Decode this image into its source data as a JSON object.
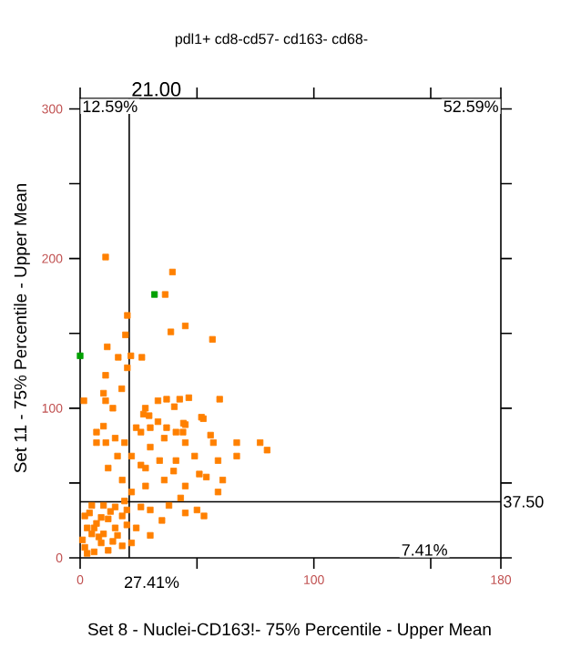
{
  "chart_data": {
    "type": "scatter",
    "title": "pdl1+ cd8-cd57- cd163- cd68-",
    "xlabel": "Set 8 - Nuclei-CD163!- 75% Percentile - Upper Mean",
    "ylabel": "Set 11 - 75% Percentile - Upper Mean",
    "xlim": [
      0,
      180
    ],
    "ylim": [
      0,
      307
    ],
    "xticks": [
      0,
      {
        "value": 50,
        "label": null
      },
      100,
      {
        "value": 150,
        "label": null
      },
      180
    ],
    "yticks": [
      0,
      {
        "value": 50,
        "label": null
      },
      100,
      {
        "value": 150,
        "label": null
      },
      200,
      {
        "value": 250,
        "label": null
      },
      300
    ],
    "marker": "square",
    "grid": false,
    "ref_lines": [
      {
        "axis": "x",
        "value": 21,
        "label": "21.00",
        "color": "#000000"
      },
      {
        "axis": "y",
        "value": 37.5,
        "label": "37.50",
        "color": "#000000"
      }
    ],
    "annotations": [
      "12.59%",
      "52.59%",
      "27.41%",
      "7.41%"
    ],
    "series": [
      {
        "color": "#ff8000",
        "x": [
          10.9,
          39.5,
          36.4,
          20.2,
          19.4,
          38.8,
          45,
          56.6,
          11.6,
          16.3,
          21.7,
          26.4,
          20.2,
          10.9,
          17.8,
          1.6,
          10,
          10.9,
          14,
          33.3,
          37,
          42.6,
          46.5,
          59.7,
          27.9,
          27.1,
          29.5,
          33.3,
          40.3,
          44.2,
          51.9,
          52.7,
          10,
          7,
          24,
          37,
          44,
          55.8,
          11,
          7,
          15,
          16,
          12,
          18,
          26,
          30,
          36,
          41,
          45,
          41,
          49,
          57,
          59,
          67,
          67,
          77,
          80,
          61,
          59,
          54,
          45,
          36,
          28,
          22,
          28,
          34,
          50,
          53,
          43,
          38,
          30,
          26,
          20,
          15,
          10,
          5,
          2,
          7,
          12,
          18,
          5,
          10,
          2,
          6,
          15,
          3,
          9,
          14,
          20,
          19,
          51,
          40,
          22,
          26,
          19,
          30,
          45,
          24,
          30,
          35,
          22,
          45,
          3,
          8,
          12,
          16,
          1,
          4,
          13,
          18,
          9,
          6
        ],
        "values": [
          201,
          191,
          176,
          162,
          149,
          151,
          155,
          146,
          141,
          134,
          135,
          134,
          127,
          122,
          113,
          105,
          110,
          105,
          100,
          105,
          106,
          106,
          107,
          106,
          100,
          96,
          95,
          91,
          101,
          90,
          94,
          93,
          88,
          84,
          87,
          87,
          84,
          82,
          77,
          77,
          80,
          68,
          60,
          52,
          84,
          74,
          80,
          84,
          77,
          65,
          68,
          77,
          65,
          77,
          68,
          77,
          72,
          52,
          44,
          54,
          48,
          52,
          48,
          44,
          60,
          65,
          32,
          28,
          40,
          35,
          32,
          34,
          32,
          34,
          35,
          35,
          28,
          23,
          26,
          28,
          16,
          16,
          7,
          4,
          20,
          20,
          10,
          11,
          22,
          38,
          56,
          58,
          68,
          62,
          77,
          87,
          89,
          20,
          15,
          25,
          10,
          30,
          3,
          14,
          5,
          15,
          12,
          30,
          31,
          8,
          27,
          20
        ]
      },
      {
        "color": "#00a000",
        "x": [
          31.8,
          0
        ],
        "values": [
          176,
          135
        ]
      }
    ]
  }
}
